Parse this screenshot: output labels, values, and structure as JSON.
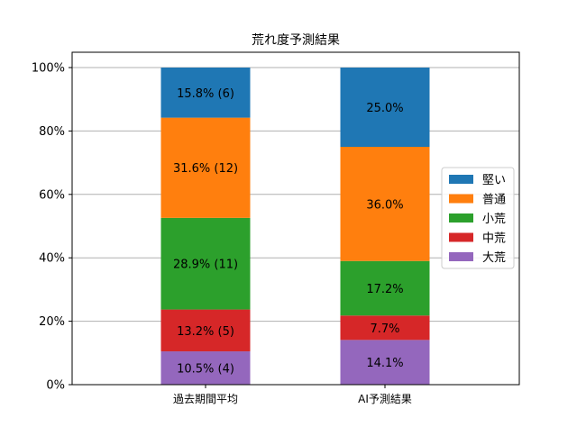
{
  "chart_data": {
    "type": "bar",
    "stacked": true,
    "title": "荒れ度予測結果",
    "categories": [
      "過去期間平均",
      "AI予測結果"
    ],
    "ylim": [
      0,
      100
    ],
    "y_ticks": [
      "0%",
      "20%",
      "40%",
      "60%",
      "80%",
      "100%"
    ],
    "grid": "horizontal",
    "legend_position": "right",
    "series": [
      {
        "name": "大荒",
        "color": "#9467bd",
        "values": [
          10.5,
          14.1
        ],
        "labels": [
          "10.5% (4)",
          "14.1%"
        ]
      },
      {
        "name": "中荒",
        "color": "#d62728",
        "values": [
          13.2,
          7.7
        ],
        "labels": [
          "13.2% (5)",
          "7.7%"
        ]
      },
      {
        "name": "小荒",
        "color": "#2ca02c",
        "values": [
          28.9,
          17.2
        ],
        "labels": [
          "28.9% (11)",
          "17.2%"
        ]
      },
      {
        "name": "普通",
        "color": "#ff7f0e",
        "values": [
          31.6,
          36.0
        ],
        "labels": [
          "31.6% (12)",
          "36.0%"
        ]
      },
      {
        "name": "堅い",
        "color": "#1f77b4",
        "values": [
          15.8,
          25.0
        ],
        "labels": [
          "15.8% (6)",
          "25.0%"
        ]
      }
    ],
    "legend_order": [
      "堅い",
      "普通",
      "小荒",
      "中荒",
      "大荒"
    ]
  }
}
